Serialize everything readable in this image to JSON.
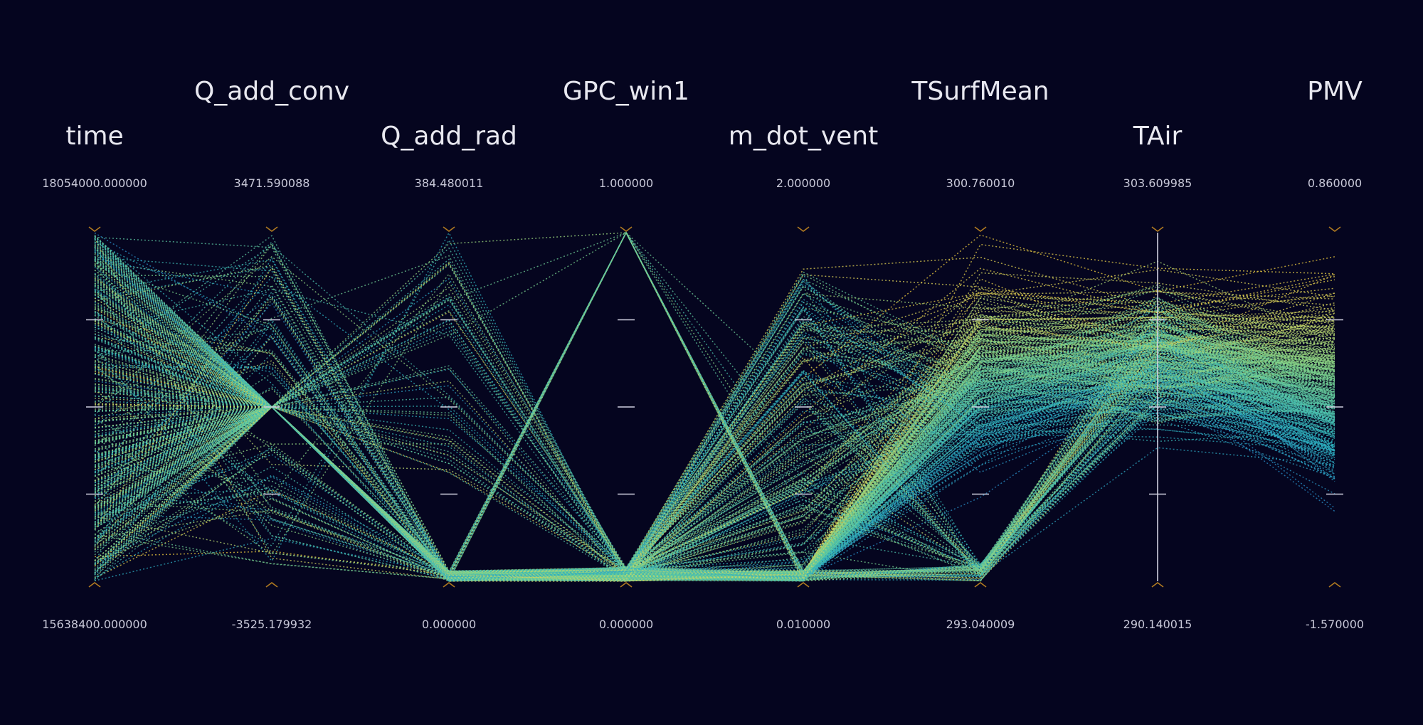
{
  "chart_data": {
    "type": "parallel-coordinates",
    "colormap": [
      "#3b52c4",
      "#2a8ec9",
      "#2fb5c0",
      "#7fd38b",
      "#e0d85c",
      "#f2c230"
    ],
    "colorBy": "PMV",
    "dimensions": [
      {
        "name": "time",
        "max": "18054000.000000",
        "min": "15638400.000000",
        "maxValue": 18054000,
        "minValue": 15638400
      },
      {
        "name": "Q_add_conv",
        "max": "3471.590088",
        "min": "-3525.179932",
        "maxValue": 3471.590088,
        "minValue": -3525.179932
      },
      {
        "name": "Q_add_rad",
        "max": "384.480011",
        "min": "0.000000",
        "maxValue": 384.480011,
        "minValue": 0
      },
      {
        "name": "GPC_win1",
        "max": "1.000000",
        "min": "0.000000",
        "maxValue": 1,
        "minValue": 0
      },
      {
        "name": "m_dot_vent",
        "max": "2.000000",
        "min": "0.010000",
        "maxValue": 2,
        "minValue": 0.01
      },
      {
        "name": "TSurfMean",
        "max": "300.760010",
        "min": "293.040009",
        "maxValue": 300.76001,
        "minValue": 293.040009
      },
      {
        "name": "TAir",
        "max": "303.609985",
        "min": "290.140015",
        "maxValue": 303.609985,
        "minValue": 290.140015
      },
      {
        "name": "PMV",
        "max": "0.860000",
        "min": "-1.570000",
        "maxValue": 0.86,
        "minValue": -1.57
      }
    ]
  }
}
